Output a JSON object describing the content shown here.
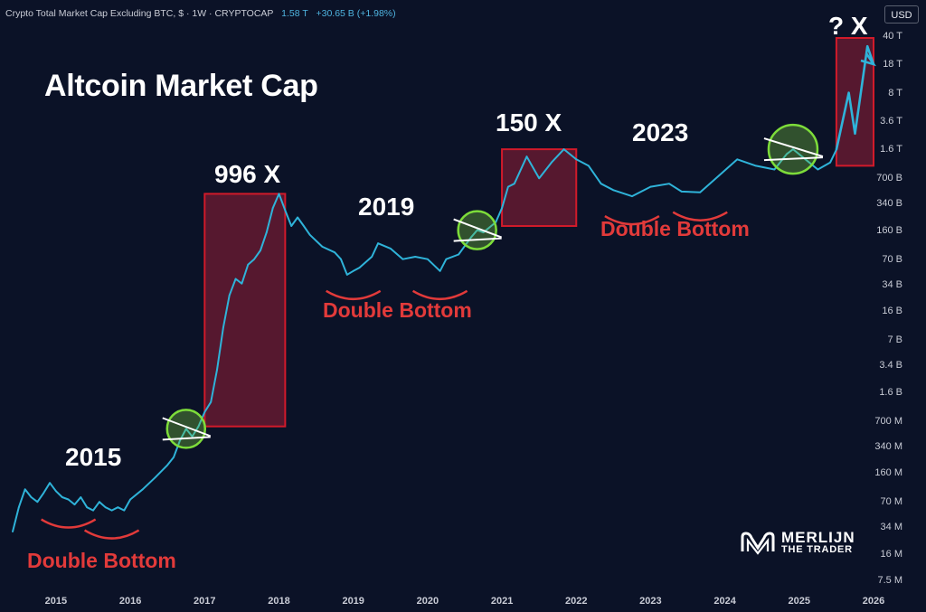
{
  "header": {
    "symbol": "Crypto Total Market Cap Excluding BTC, $ · 1W · CRYPTOCAP",
    "last": "1.58 T",
    "change": "+30.65 B (+1.98%)"
  },
  "currency_button": "USD",
  "title": "Altcoin Market Cap",
  "annotations": {
    "year_2015": "2015",
    "year_2019": "2019",
    "year_2023": "2023",
    "mult_996": "996 X",
    "mult_150": "150 X",
    "mult_q": "? X",
    "double_bottom": "Double Bottom"
  },
  "brand": {
    "line1": "MERLIJN",
    "line2": "THE TRADER"
  },
  "colors": {
    "background": "#0b1227",
    "line": "#2fb3d9",
    "box": "#d11a2a",
    "circle": "#7ddc3a",
    "bottom": "#e23a3a"
  },
  "chart_data": {
    "type": "line",
    "scale": "log",
    "xlim": [
      "2014-06",
      "2026-01"
    ],
    "ylim": [
      "7.5 M",
      "40 T"
    ],
    "x_ticks": [
      "2015",
      "2016",
      "2017",
      "2018",
      "2019",
      "2020",
      "2021",
      "2022",
      "2023",
      "2024",
      "2025",
      "2026"
    ],
    "y_ticks": [
      "40 T",
      "18 T",
      "8 T",
      "3.6 T",
      "1.6 T",
      "700 B",
      "340 B",
      "160 B",
      "70 B",
      "34 B",
      "16 B",
      "7 B",
      "3.4 B",
      "1.6 B",
      "700 M",
      "340 M",
      "160 M",
      "70 M",
      "34 M",
      "16 M",
      "7.5 M"
    ],
    "series": [
      {
        "name": "Crypto Total Market Cap Excluding BTC",
        "points": [
          [
            "2014-06",
            "30 M"
          ],
          [
            "2014-07",
            "60 M"
          ],
          [
            "2014-08",
            "100 M"
          ],
          [
            "2014-09",
            "80 M"
          ],
          [
            "2014-10",
            "70 M"
          ],
          [
            "2014-11",
            "90 M"
          ],
          [
            "2014-12",
            "120 M"
          ],
          [
            "2015-01",
            "95 M"
          ],
          [
            "2015-02",
            "80 M"
          ],
          [
            "2015-03",
            "75 M"
          ],
          [
            "2015-04",
            "65 M"
          ],
          [
            "2015-05",
            "80 M"
          ],
          [
            "2015-06",
            "60 M"
          ],
          [
            "2015-07",
            "55 M"
          ],
          [
            "2015-08",
            "70 M"
          ],
          [
            "2015-09",
            "60 M"
          ],
          [
            "2015-10",
            "55 M"
          ],
          [
            "2015-11",
            "60 M"
          ],
          [
            "2015-12",
            "55 M"
          ],
          [
            "2016-01",
            "75 M"
          ],
          [
            "2016-03",
            "100 M"
          ],
          [
            "2016-05",
            "140 M"
          ],
          [
            "2016-07",
            "200 M"
          ],
          [
            "2016-08",
            "250 M"
          ],
          [
            "2016-09",
            "400 M"
          ],
          [
            "2016-10",
            "560 M"
          ],
          [
            "2016-11",
            "450 M"
          ],
          [
            "2016-12",
            "600 M"
          ],
          [
            "2017-01",
            "900 M"
          ],
          [
            "2017-02",
            "1.2 B"
          ],
          [
            "2017-03",
            "3 B"
          ],
          [
            "2017-04",
            "10 B"
          ],
          [
            "2017-05",
            "25 B"
          ],
          [
            "2017-06",
            "40 B"
          ],
          [
            "2017-07",
            "35 B"
          ],
          [
            "2017-08",
            "60 B"
          ],
          [
            "2017-09",
            "70 B"
          ],
          [
            "2017-10",
            "90 B"
          ],
          [
            "2017-11",
            "150 B"
          ],
          [
            "2017-12",
            "300 B"
          ],
          [
            "2018-01",
            "450 B"
          ],
          [
            "2018-02",
            "280 B"
          ],
          [
            "2018-03",
            "180 B"
          ],
          [
            "2018-04",
            "230 B"
          ],
          [
            "2018-05",
            "180 B"
          ],
          [
            "2018-06",
            "140 B"
          ],
          [
            "2018-08",
            "100 B"
          ],
          [
            "2018-10",
            "85 B"
          ],
          [
            "2018-11",
            "70 B"
          ],
          [
            "2018-12",
            "45 B"
          ],
          [
            "2019-01",
            "50 B"
          ],
          [
            "2019-02",
            "55 B"
          ],
          [
            "2019-04",
            "75 B"
          ],
          [
            "2019-05",
            "110 B"
          ],
          [
            "2019-07",
            "95 B"
          ],
          [
            "2019-09",
            "70 B"
          ],
          [
            "2019-11",
            "75 B"
          ],
          [
            "2020-01",
            "70 B"
          ],
          [
            "2020-03",
            "50 B"
          ],
          [
            "2020-04",
            "70 B"
          ],
          [
            "2020-06",
            "80 B"
          ],
          [
            "2020-08",
            "130 B"
          ],
          [
            "2020-09",
            "160 B"
          ],
          [
            "2020-10",
            "150 B"
          ],
          [
            "2020-12",
            "200 B"
          ],
          [
            "2021-01",
            "300 B"
          ],
          [
            "2021-02",
            "550 B"
          ],
          [
            "2021-03",
            "600 B"
          ],
          [
            "2021-05",
            "1.3 T"
          ],
          [
            "2021-07",
            "700 B"
          ],
          [
            "2021-09",
            "1.1 T"
          ],
          [
            "2021-11",
            "1.6 T"
          ],
          [
            "2022-01",
            "1.2 T"
          ],
          [
            "2022-03",
            "1 T"
          ],
          [
            "2022-05",
            "600 B"
          ],
          [
            "2022-07",
            "500 B"
          ],
          [
            "2022-10",
            "420 B"
          ],
          [
            "2023-01",
            "550 B"
          ],
          [
            "2023-04",
            "600 B"
          ],
          [
            "2023-06",
            "480 B"
          ],
          [
            "2023-09",
            "470 B"
          ],
          [
            "2023-12",
            "750 B"
          ],
          [
            "2024-03",
            "1.2 T"
          ],
          [
            "2024-06",
            "1 T"
          ],
          [
            "2024-09",
            "900 B"
          ],
          [
            "2024-11",
            "1.4 T"
          ],
          [
            "2024-12",
            "1.6 T"
          ],
          [
            "2025-02",
            "1.2 T"
          ],
          [
            "2025-04",
            "900 B"
          ],
          [
            "2025-06",
            "1.1 T"
          ],
          [
            "2025-07",
            "1.58 T"
          ]
        ]
      },
      {
        "name": "projection",
        "points": [
          [
            "2025-07",
            "1.58 T"
          ],
          [
            "2025-09",
            "8 T"
          ],
          [
            "2025-10",
            "2.5 T"
          ],
          [
            "2025-12",
            "30 T"
          ],
          [
            "2026-01",
            "18 T"
          ]
        ]
      }
    ],
    "highlight_boxes": [
      {
        "label": "996 X",
        "x": [
          "2017-01",
          "2018-02"
        ],
        "y": [
          "600 M",
          "450 B"
        ]
      },
      {
        "label": "150 X",
        "x": [
          "2021-01",
          "2022-01"
        ],
        "y": [
          "180 B",
          "1.6 T"
        ]
      },
      {
        "label": "? X",
        "x": [
          "2025-07",
          "2026-01"
        ],
        "y": [
          "1 T",
          "38 T"
        ]
      }
    ],
    "breakout_circles": [
      "2016-10",
      "2020-09",
      "2024-12"
    ],
    "double_bottoms": [
      {
        "label": "Double Bottom",
        "lows": [
          "2015-03",
          "2015-10"
        ]
      },
      {
        "label": "Double Bottom",
        "lows": [
          "2019-01",
          "2020-03"
        ]
      },
      {
        "label": "Double Bottom",
        "lows": [
          "2022-10",
          "2023-09"
        ]
      }
    ]
  }
}
